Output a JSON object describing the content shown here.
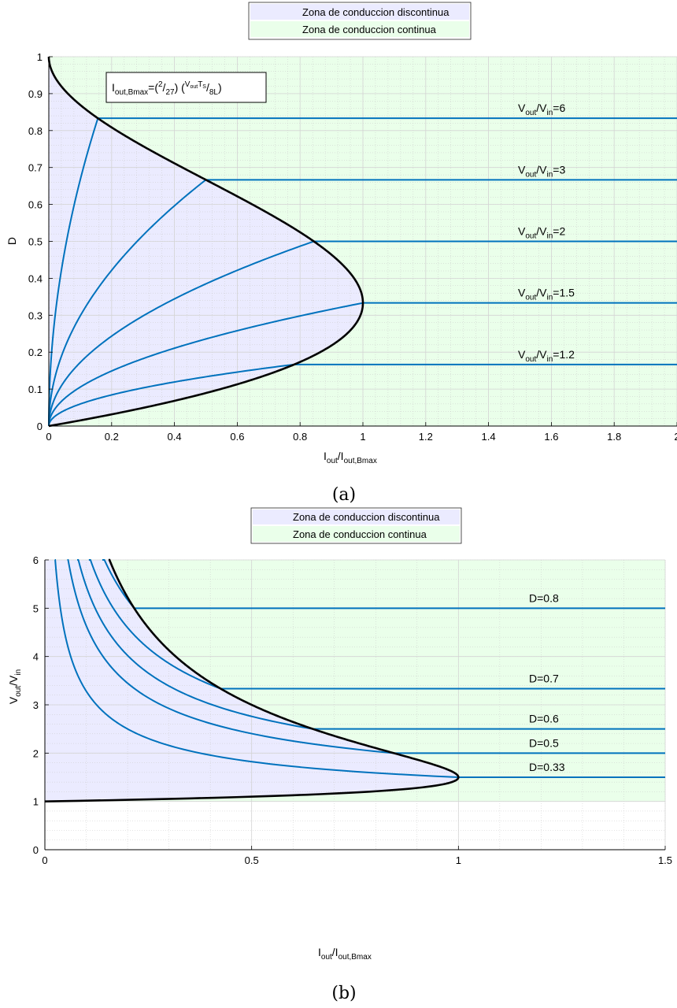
{
  "chart_data": [
    {
      "type": "line",
      "subfigure_label": "(a)",
      "legend": {
        "placement": "top-center-outside",
        "entries": [
          {
            "label": "Zona de conduccion discontinua",
            "color": "#ebebff"
          },
          {
            "label": "Zona de conduccion continua",
            "color": "#eaffea"
          }
        ]
      },
      "annotation": {
        "left": "I",
        "left_sub": "out,Bmax",
        "eq": "=(",
        "num": "2",
        "slash1": "/",
        "den": "27",
        "mid": ") (",
        "v": "V",
        "v_sub": "out",
        "t": "T",
        "t_sub": "S",
        "slash2": "/",
        "den2": "8L",
        "close": ")"
      },
      "xlabel": {
        "main": "I",
        "sub1": "out",
        "mid": "/I",
        "sub2": "out,Bmax"
      },
      "ylabel": "D",
      "xlim": [
        0,
        2
      ],
      "ylim": [
        0,
        1
      ],
      "xticks": [
        "0",
        "0.2",
        "0.4",
        "0.6",
        "0.8",
        "1",
        "1.2",
        "1.4",
        "1.6",
        "1.8",
        "2"
      ],
      "yticks": [
        "0",
        "0.1",
        "0.2",
        "0.3",
        "0.4",
        "0.5",
        "0.6",
        "0.7",
        "0.8",
        "0.9",
        "1"
      ],
      "grid": true,
      "boundary_curve": {
        "formula": "x = (27/4) * D * (1-D)^2",
        "color": "#000000"
      },
      "series": [
        {
          "label": {
            "v": "V",
            "v_sub": "out",
            "slash": "/V",
            "in_sub": "in",
            "val": "=6"
          },
          "D": 0.8333,
          "color": "#0072bd"
        },
        {
          "label": {
            "v": "V",
            "v_sub": "out",
            "slash": "/V",
            "in_sub": "in",
            "val": "=3"
          },
          "D": 0.6667,
          "color": "#0072bd"
        },
        {
          "label": {
            "v": "V",
            "v_sub": "out",
            "slash": "/V",
            "in_sub": "in",
            "val": "=2"
          },
          "D": 0.5,
          "color": "#0072bd"
        },
        {
          "label": {
            "v": "V",
            "v_sub": "out",
            "slash": "/V",
            "in_sub": "in",
            "val": "=1.5"
          },
          "D": 0.3333,
          "color": "#0072bd"
        },
        {
          "label": {
            "v": "V",
            "v_sub": "out",
            "slash": "/V",
            "in_sub": "in",
            "val": "=1.2"
          },
          "D": 0.1667,
          "color": "#0072bd"
        }
      ]
    },
    {
      "type": "line",
      "subfigure_label": "(b)",
      "legend": {
        "placement": "top-center-outside",
        "entries": [
          {
            "label": "Zona de conduccion discontinua",
            "color": "#ebebff"
          },
          {
            "label": "Zona de conduccion continua",
            "color": "#eaffea"
          }
        ]
      },
      "xlabel": {
        "main": "I",
        "sub1": "out",
        "mid": "/I",
        "sub2": "out,Bmax"
      },
      "ylabel": {
        "main": "V",
        "sub1": "out",
        "mid": "/V",
        "sub2": "in"
      },
      "xlim": [
        0,
        1.5
      ],
      "ylim": [
        0,
        6
      ],
      "xticks": [
        "0",
        "0.5",
        "1",
        "1.5"
      ],
      "yticks": [
        "0",
        "1",
        "2",
        "3",
        "4",
        "5",
        "6"
      ],
      "grid": true,
      "boundary_curve": {
        "formula": "x = (27/4) * (M-1) / M^3",
        "color": "#000000"
      },
      "series": [
        {
          "label": "D=0.8",
          "D": 0.8,
          "M": 5.0,
          "color": "#0072bd"
        },
        {
          "label": "D=0.7",
          "D": 0.7,
          "M": 3.3333,
          "color": "#0072bd"
        },
        {
          "label": "D=0.6",
          "D": 0.6,
          "M": 2.5,
          "color": "#0072bd"
        },
        {
          "label": "D=0.5",
          "D": 0.5,
          "M": 2.0,
          "color": "#0072bd"
        },
        {
          "label": "D=0.33",
          "D": 0.3333,
          "M": 1.5,
          "color": "#0072bd"
        }
      ]
    }
  ]
}
